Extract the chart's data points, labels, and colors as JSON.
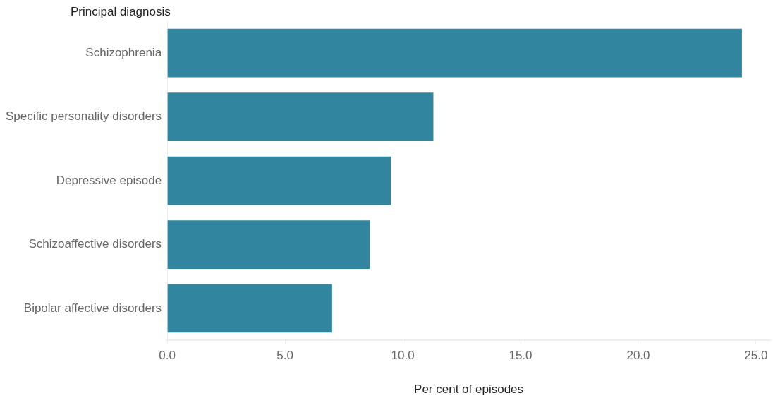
{
  "chart_data": {
    "type": "bar",
    "orientation": "horizontal",
    "ylabel": "Principal diagnosis",
    "xlabel": "Per cent of episodes",
    "categories": [
      "Schizophrenia",
      "Specific personality disorders",
      "Depressive episode",
      "Schizoaffective disorders",
      "Bipolar affective disorders"
    ],
    "values": [
      24.4,
      11.3,
      9.5,
      8.6,
      7.0
    ],
    "color": "#31859f",
    "xlim": [
      0,
      25.6
    ],
    "xticks": [
      {
        "value": 0,
        "label": "0.0"
      },
      {
        "value": 5,
        "label": "5.0"
      },
      {
        "value": 10,
        "label": "10.0"
      },
      {
        "value": 15,
        "label": "15.0"
      },
      {
        "value": 20,
        "label": "20.0"
      },
      {
        "value": 25,
        "label": "25.0"
      }
    ],
    "grid": false,
    "legend": false
  }
}
